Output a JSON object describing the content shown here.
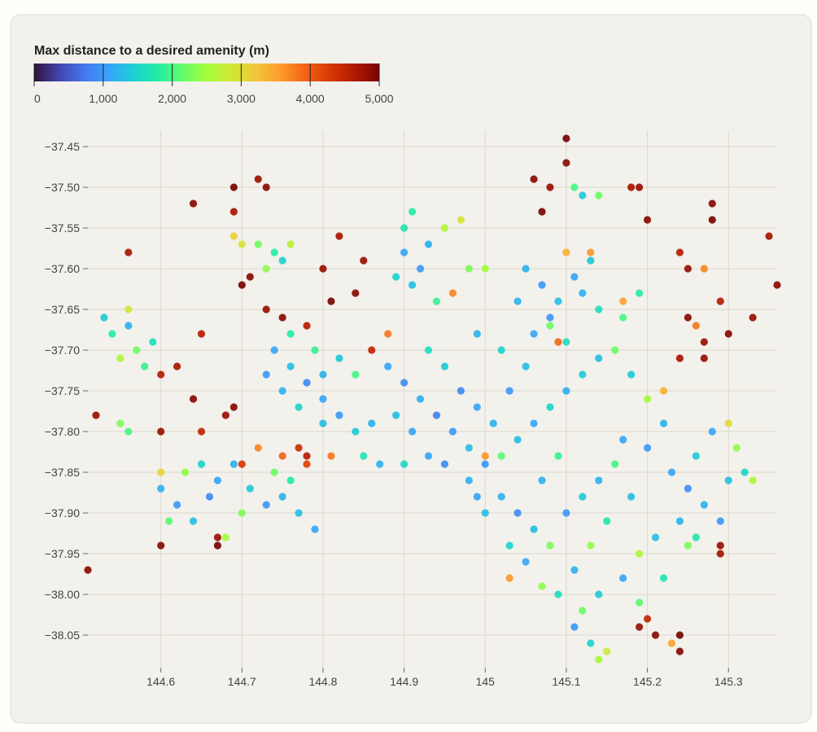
{
  "chart_data": {
    "type": "scatter",
    "colorbar_title": "Max distance to a desired amenity (m)",
    "clim": [
      0,
      5000
    ],
    "cticks": [
      0,
      {
        "value": 1000,
        "label": "1,000"
      },
      {
        "value": 2000,
        "label": "2,000"
      },
      {
        "value": 3000,
        "label": "3,000"
      },
      {
        "value": 4000,
        "label": "4,000"
      },
      {
        "value": 5000,
        "label": "5,000"
      }
    ],
    "colorscale": [
      "#30123b",
      "#4145ab",
      "#4675ed",
      "#39a2fc",
      "#1bcfd4",
      "#24eca6",
      "#61fc6c",
      "#a4fc3b",
      "#d1e834",
      "#f3c63a",
      "#fe9b2d",
      "#f36315",
      "#d93806",
      "#b11901",
      "#7a0402"
    ],
    "xlim": [
      144.51,
      145.36
    ],
    "ylim": [
      -38.09,
      -37.43
    ],
    "xticks": [
      144.6,
      144.7,
      144.8,
      144.9,
      145.0,
      145.1,
      145.2,
      145.3
    ],
    "yticks": [
      {
        "value": -37.45,
        "label": "−37.45"
      },
      {
        "value": -37.5,
        "label": "−37.50"
      },
      {
        "value": -37.55,
        "label": "−37.55"
      },
      {
        "value": -37.6,
        "label": "−37.60"
      },
      {
        "value": -37.65,
        "label": "−37.65"
      },
      {
        "value": -37.7,
        "label": "−37.70"
      },
      {
        "value": -37.75,
        "label": "−37.75"
      },
      {
        "value": -37.8,
        "label": "−37.80"
      },
      {
        "value": -37.85,
        "label": "−37.85"
      },
      {
        "value": -37.9,
        "label": "−37.90"
      },
      {
        "value": -37.95,
        "label": "−37.95"
      },
      {
        "value": -38.0,
        "label": "−38.00"
      },
      {
        "value": -38.05,
        "label": "−38.05"
      }
    ],
    "grid": true,
    "x": [
      144.88,
      144.9,
      144.92,
      144.94,
      144.96,
      144.98,
      144.95,
      144.97,
      144.99,
      145.01,
      145.03,
      145.05,
      145.02,
      144.99,
      144.93,
      144.91,
      144.89,
      144.86,
      144.84,
      144.82,
      144.8,
      144.85,
      144.87,
      144.9,
      144.93,
      144.95,
      144.98,
      145.0,
      145.02,
      145.04,
      145.06,
      145.08,
      145.1,
      145.12,
      145.14,
      145.06,
      145.08,
      145.04,
      145.1,
      145.16,
      145.18,
      145.2,
      145.22,
      145.2,
      144.74,
      144.76,
      144.78,
      144.75,
      144.77,
      144.73,
      144.79,
      144.8,
      144.82,
      144.84,
      144.76,
      144.8,
      145.02,
      145.04,
      145.06,
      145.03,
      145.05,
      145.08,
      145.1,
      145.12,
      145.14,
      145.16,
      145.18,
      145.15,
      145.13,
      145.11,
      145.09,
      145.12,
      145.14,
      145.17,
      145.19,
      145.21,
      145.11,
      145.13,
      145.14,
      145.15,
      145.07,
      145.03,
      145.0,
      144.99,
      145.07,
      145.09,
      145.17,
      145.19,
      145.22,
      145.23,
      145.25,
      145.27,
      145.29,
      145.26,
      145.28,
      145.3,
      145.24,
      145.26,
      145.32,
      145.3,
      145.31,
      145.25,
      145.33,
      145.05,
      145.07,
      145.09,
      145.11,
      145.13,
      145.12,
      145.08,
      145.14,
      145.1,
      145.13,
      145.17,
      145.19,
      145.11,
      145.12,
      145.14,
      145.09,
      145.17,
      144.9,
      144.92,
      144.91,
      144.93,
      144.89,
      144.9,
      144.91,
      144.95,
      144.97,
      144.94,
      144.96,
      144.98,
      145.0,
      144.72,
      144.74,
      144.73,
      144.75,
      144.76,
      144.7,
      144.69,
      144.53,
      144.54,
      144.56,
      144.57,
      144.58,
      144.55,
      144.56,
      144.59,
      144.55,
      144.56,
      144.6,
      144.62,
      144.64,
      144.61,
      144.63,
      144.65,
      144.67,
      144.69,
      144.66,
      144.71,
      144.73,
      144.75,
      144.74,
      144.76,
      144.77,
      144.79,
      144.7,
      144.68,
      144.6,
      144.72,
      144.75,
      144.78,
      144.51,
      144.52,
      144.56,
      144.64,
      144.69,
      144.72,
      144.73,
      144.69,
      144.7,
      144.71,
      144.73,
      144.75,
      144.78,
      144.8,
      144.81,
      144.82,
      144.84,
      144.85,
      145.06,
      145.07,
      145.08,
      145.1,
      145.1,
      145.18,
      145.19,
      145.2,
      145.24,
      145.25,
      145.28,
      145.28,
      145.35,
      145.36,
      145.33,
      145.3,
      145.29,
      145.27,
      145.25,
      145.24,
      145.27,
      145.2,
      145.21,
      145.19,
      145.24,
      145.24,
      145.29,
      145.29,
      144.6,
      144.67,
      144.67,
      144.6,
      144.62,
      144.6,
      144.64,
      144.65,
      144.68,
      144.69,
      144.65,
      144.77,
      144.78,
      144.7,
      144.88,
      144.86,
      145.0,
      145.26,
      145.27,
      144.81,
      145.23,
      145.22
    ],
    "y": [
      -37.72,
      -37.74,
      -37.76,
      -37.78,
      -37.8,
      -37.82,
      -37.72,
      -37.75,
      -37.77,
      -37.79,
      -37.75,
      -37.72,
      -37.7,
      -37.68,
      -37.7,
      -37.8,
      -37.78,
      -37.79,
      -37.8,
      -37.78,
      -37.79,
      -37.83,
      -37.84,
      -37.84,
      -37.83,
      -37.84,
      -37.86,
      -37.84,
      -37.83,
      -37.81,
      -37.79,
      -37.77,
      -37.75,
      -37.73,
      -37.71,
      -37.68,
      -37.66,
      -37.64,
      -37.69,
      -37.7,
      -37.73,
      -37.76,
      -37.79,
      -37.82,
      -37.7,
      -37.72,
      -37.74,
      -37.75,
      -37.77,
      -37.73,
      -37.7,
      -37.73,
      -37.71,
      -37.73,
      -37.68,
      -37.76,
      -37.88,
      -37.9,
      -37.92,
      -37.94,
      -37.96,
      -37.94,
      -37.9,
      -37.88,
      -37.86,
      -37.84,
      -37.88,
      -37.91,
      -37.94,
      -37.97,
      -38.0,
      -38.02,
      -38.0,
      -37.98,
      -37.95,
      -37.93,
      -38.04,
      -38.06,
      -38.08,
      -38.07,
      -37.99,
      -37.98,
      -37.9,
      -37.88,
      -37.86,
      -37.83,
      -37.81,
      -38.01,
      -37.98,
      -37.85,
      -37.87,
      -37.89,
      -37.91,
      -37.83,
      -37.8,
      -37.86,
      -37.91,
      -37.93,
      -37.85,
      -37.79,
      -37.82,
      -37.94,
      -37.86,
      -37.6,
      -37.62,
      -37.64,
      -37.61,
      -37.59,
      -37.63,
      -37.67,
      -37.65,
      -37.58,
      -37.58,
      -37.66,
      -37.63,
      -37.5,
      -37.51,
      -37.51,
      -37.69,
      -37.64,
      -37.58,
      -37.6,
      -37.62,
      -37.57,
      -37.61,
      -37.55,
      -37.53,
      -37.55,
      -37.54,
      -37.64,
      -37.63,
      -37.6,
      -37.6,
      -37.57,
      -37.58,
      -37.6,
      -37.59,
      -37.57,
      -37.57,
      -37.56,
      -37.66,
      -37.68,
      -37.67,
      -37.7,
      -37.72,
      -37.71,
      -37.65,
      -37.69,
      -37.79,
      -37.8,
      -37.87,
      -37.89,
      -37.91,
      -37.91,
      -37.85,
      -37.84,
      -37.86,
      -37.84,
      -37.88,
      -37.87,
      -37.89,
      -37.88,
      -37.85,
      -37.86,
      -37.9,
      -37.92,
      -37.9,
      -37.93,
      -37.85,
      -37.82,
      -37.83,
      -37.84,
      -37.97,
      -37.78,
      -37.58,
      -37.52,
      -37.5,
      -37.49,
      -37.5,
      -37.53,
      -37.62,
      -37.61,
      -37.65,
      -37.66,
      -37.67,
      -37.6,
      -37.64,
      -37.56,
      -37.63,
      -37.59,
      -37.49,
      -37.53,
      -37.5,
      -37.44,
      -37.47,
      -37.5,
      -37.5,
      -37.54,
      -37.58,
      -37.6,
      -37.52,
      -37.54,
      -37.56,
      -37.62,
      -37.66,
      -37.68,
      -37.64,
      -37.69,
      -37.66,
      -37.71,
      -37.71,
      -38.03,
      -38.05,
      -38.04,
      -38.05,
      -38.07,
      -37.94,
      -37.95,
      -37.94,
      -37.93,
      -37.94,
      -37.73,
      -37.72,
      -37.8,
      -37.76,
      -37.68,
      -37.78,
      -37.77,
      -37.8,
      -37.82,
      -37.83,
      -37.84,
      -37.68,
      -37.7,
      -37.83,
      -37.67,
      -37.6,
      -37.83,
      -38.06,
      -37.75
    ],
    "values": [
      1100,
      900,
      1200,
      800,
      1000,
      1300,
      1400,
      900,
      1100,
      1200,
      1000,
      1300,
      1500,
      1200,
      1600,
      1100,
      1300,
      1200,
      1400,
      1000,
      1300,
      1700,
      1200,
      1500,
      1100,
      900,
      1200,
      1000,
      2100,
      1300,
      1100,
      1500,
      1200,
      1400,
      1300,
      1100,
      1000,
      1200,
      1600,
      2200,
      1400,
      2500,
      1200,
      1000,
      1100,
      1300,
      900,
      1200,
      1500,
      1000,
      1900,
      1200,
      1400,
      2000,
      1800,
      1100,
      1200,
      900,
      1300,
      1500,
      1100,
      2300,
      1000,
      1400,
      1200,
      2000,
      1300,
      1700,
      2400,
      1200,
      1600,
      2200,
      1400,
      1100,
      2600,
      1300,
      1000,
      1500,
      2500,
      2800,
      2400,
      3600,
      1300,
      1100,
      1200,
      1900,
      1100,
      2100,
      1700,
      1100,
      900,
      1200,
      1000,
      1400,
      1100,
      1300,
      1200,
      1700,
      1500,
      3000,
      2400,
      2300,
      2600,
      1200,
      1000,
      1300,
      1100,
      1400,
      1200,
      2200,
      1600,
      3400,
      3600,
      2000,
      1800,
      2000,
      1400,
      2200,
      3900,
      3500,
      1100,
      1000,
      1300,
      1200,
      1500,
      1700,
      1800,
      2600,
      2900,
      1900,
      3700,
      2300,
      2500,
      2200,
      1800,
      2400,
      1500,
      2700,
      2900,
      3100,
      1400,
      1800,
      1200,
      2200,
      1900,
      2600,
      2900,
      1600,
      2300,
      2000,
      1200,
      1000,
      1300,
      2100,
      2400,
      1500,
      1100,
      1200,
      900,
      1400,
      1000,
      1200,
      2200,
      1800,
      1300,
      1100,
      2300,
      2500,
      3100,
      3700,
      3900,
      4200,
      4900,
      4800,
      4700,
      4900,
      5000,
      4800,
      4900,
      4700,
      5000,
      4900,
      4800,
      4900,
      4600,
      4800,
      5000,
      4700,
      4900,
      4800,
      4900,
      5000,
      4800,
      5000,
      4900,
      4700,
      4800,
      4900,
      4600,
      4800,
      4900,
      5000,
      4700,
      4900,
      4800,
      4900,
      4600,
      4800,
      4900,
      4700,
      4800,
      4500,
      4900,
      4800,
      5000,
      4900,
      4800,
      4700,
      4900,
      4800,
      5000,
      4600,
      4700,
      4800,
      4900,
      4600,
      4800,
      4900,
      4500,
      4400,
      4600,
      4300,
      3800,
      4500,
      3600,
      3800,
      3700,
      3800,
      3500,
      3400
    ]
  }
}
